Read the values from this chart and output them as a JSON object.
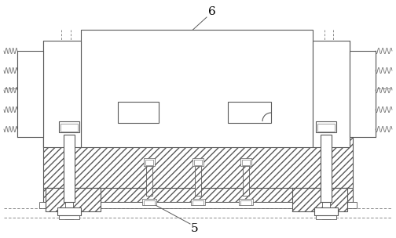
{
  "bg_color": "#ffffff",
  "lc": "#5a5a5a",
  "lc_dark": "#333333",
  "label_6": "6",
  "label_5": "5",
  "fig_width": 5.04,
  "fig_height": 3.04,
  "dpi": 100
}
